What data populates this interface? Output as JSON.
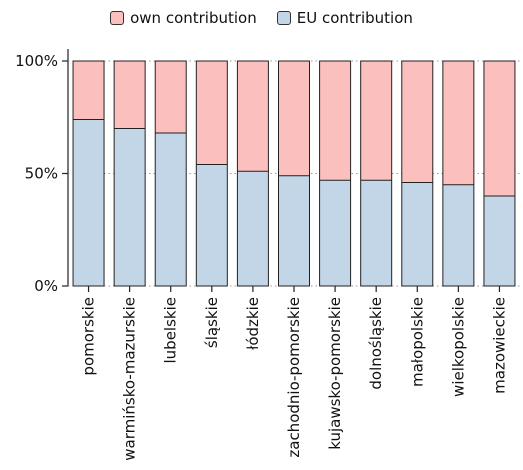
{
  "chart_data": {
    "type": "bar",
    "stacked": true,
    "categories": [
      "pomorskie",
      "warmińsko-mazurskie",
      "lubelskie",
      "śląskie",
      "łódzkie",
      "zachodnio-pomorskie",
      "kujawsko-pomorskie",
      "dolnośląskie",
      "małopolskie",
      "wielkopolskie",
      "mazowieckie"
    ],
    "series": [
      {
        "name": "EU contribution",
        "color": "#c2d6e8",
        "values": [
          74,
          70,
          68,
          54,
          51,
          49,
          47,
          47,
          46,
          45,
          40
        ]
      },
      {
        "name": "own contribution",
        "color": "#fbbfbd",
        "values": [
          26,
          30,
          32,
          46,
          49,
          51,
          53,
          53,
          54,
          55,
          60
        ]
      }
    ],
    "ylim": [
      0,
      100
    ],
    "yticks": [
      "0%",
      "50%",
      "100%"
    ],
    "grid": true,
    "legend_position": "top-center"
  }
}
